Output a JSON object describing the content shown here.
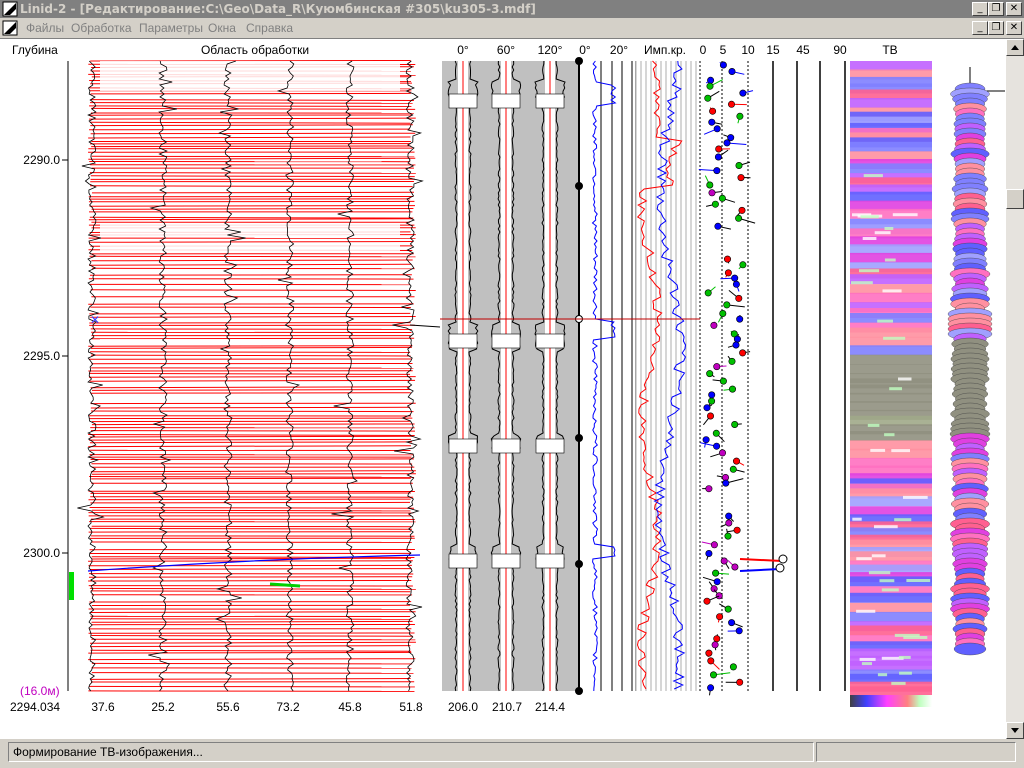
{
  "window": {
    "title": "Linid-2 - [Редактирование:C:\\Geo\\Data_R\\Куюмбинская #305\\ku305-3.mdf]",
    "buttons": [
      "_",
      "❐",
      "✕"
    ],
    "mdi_buttons": [
      "_",
      "❐",
      "✕"
    ]
  },
  "menu": {
    "items": [
      "Файлы",
      "Обработка",
      "Параметры",
      "Окна",
      "Справка"
    ]
  },
  "tracks": {
    "headers": {
      "depth": "Глубина",
      "processing": "Область обработки",
      "angles": [
        "0°",
        "60°",
        "120°"
      ],
      "dev_ticks": [
        "0°",
        "20°"
      ],
      "impedance": "Имп.кр.",
      "dip_ticks": [
        "0",
        "5",
        "10",
        "15",
        "45",
        "90"
      ],
      "tv": "ТВ"
    },
    "depth_ticks": [
      "2290.0",
      "2295.0",
      "2300.0"
    ],
    "depth_scale": "(16.0м)",
    "bottom_values": [
      "2294.034",
      "37.6",
      "25.2",
      "55.6",
      "73.2",
      "45.8",
      "51.8",
      "206.0",
      "210.7",
      "214.4"
    ]
  },
  "status": {
    "text": "Формирование ТВ-изображения...",
    "right": ""
  },
  "colors": {
    "red": "#ff0000",
    "blue": "#0000ff",
    "green": "#00c000",
    "magenta": "#c000c0",
    "track_gray": "#c0c0c0",
    "depth_scale_color": "#c000c0"
  }
}
